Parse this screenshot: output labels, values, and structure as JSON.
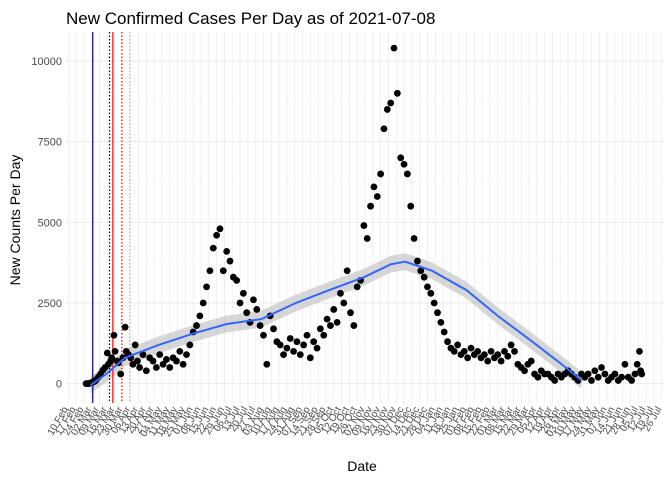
{
  "chart_data": {
    "type": "scatter",
    "title": "New Confirmed Cases Per Day as of 2021-07-08",
    "xlabel": "Date",
    "ylabel": "New Counts Per Day",
    "ylim": [
      -600,
      10900
    ],
    "y_ticks": [
      0,
      2500,
      5000,
      7500,
      10000
    ],
    "y_tick_labels": [
      "0",
      "2500",
      "5000",
      "7500",
      "10000"
    ],
    "xlim": [
      "2020-02-08",
      "2021-07-28"
    ],
    "x_tick_labels": [
      "10 Feb",
      "17 Feb",
      "24 Feb",
      "02 Mar",
      "09 Mar",
      "16 Mar",
      "23 Mar",
      "30 Mar",
      "06 Apr",
      "13 Apr",
      "20 Apr",
      "27 Apr",
      "04 May",
      "11 May",
      "18 May",
      "25 May",
      "01 Jun",
      "08 Jun",
      "15 Jun",
      "22 Jun",
      "29 Jun",
      "06 Jul",
      "13 Jul",
      "20 Jul",
      "27 Jul",
      "03 Aug",
      "10 Aug",
      "17 Aug",
      "24 Aug",
      "31 Aug",
      "07 Sep",
      "14 Sep",
      "21 Sep",
      "28 Sep",
      "05 Oct",
      "12 Oct",
      "19 Oct",
      "26 Oct",
      "02 Nov",
      "09 Nov",
      "16 Nov",
      "23 Nov",
      "30 Nov",
      "07 Dec",
      "14 Dec",
      "21 Dec",
      "28 Dec",
      "04 Jan",
      "11 Jan",
      "18 Jan",
      "25 Jan",
      "01 Feb",
      "08 Feb",
      "15 Feb",
      "22 Feb",
      "01 Mar",
      "08 Mar",
      "15 Mar",
      "22 Mar",
      "29 Mar",
      "05 Apr",
      "12 Apr",
      "19 Apr",
      "26 Apr",
      "03 May",
      "10 May",
      "17 May",
      "24 May",
      "31 May",
      "07 Jun",
      "14 Jun",
      "21 Jun",
      "28 Jun",
      "05 Jul",
      "12 Jul",
      "19 Jul",
      "26 Jul"
    ],
    "grid": true,
    "point_color": "#000000",
    "smooth_color": "#3366ff",
    "ribbon_color": "#bdbdbd",
    "vlines": [
      {
        "date": "2020-03-03",
        "color": "#00008b",
        "style": "solid"
      },
      {
        "date": "2020-03-21",
        "color": "#ff0000",
        "style": "solid"
      },
      {
        "date": "2020-03-18",
        "color": "#000000",
        "style": "dotted"
      },
      {
        "date": "2020-03-29",
        "color": "#ff0000",
        "style": "dotted"
      },
      {
        "date": "2020-04-05",
        "color": "#ff9999",
        "style": "dotted"
      }
    ],
    "series": [
      {
        "values": [
          [
            "2020-02-26",
            0
          ],
          [
            "2020-02-27",
            0
          ],
          [
            "2020-02-28",
            0
          ],
          [
            "2020-02-29",
            10
          ],
          [
            "2020-03-01",
            20
          ],
          [
            "2020-03-02",
            30
          ],
          [
            "2020-03-03",
            50
          ],
          [
            "2020-03-04",
            60
          ],
          [
            "2020-03-05",
            80
          ],
          [
            "2020-03-06",
            120
          ],
          [
            "2020-03-08",
            200
          ],
          [
            "2020-03-10",
            300
          ],
          [
            "2020-03-12",
            420
          ],
          [
            "2020-03-14",
            500
          ],
          [
            "2020-03-16",
            950
          ],
          [
            "2020-03-17",
            600
          ],
          [
            "2020-03-19",
            700
          ],
          [
            "2020-03-20",
            800
          ],
          [
            "2020-03-22",
            1500
          ],
          [
            "2020-03-23",
            1000
          ],
          [
            "2020-03-25",
            700
          ],
          [
            "2020-03-26",
            650
          ],
          [
            "2020-03-28",
            300
          ],
          [
            "2020-03-30",
            800
          ],
          [
            "2020-04-01",
            1750
          ],
          [
            "2020-04-02",
            1000
          ],
          [
            "2020-04-04",
            900
          ],
          [
            "2020-04-06",
            800
          ],
          [
            "2020-04-08",
            600
          ],
          [
            "2020-04-10",
            1200
          ],
          [
            "2020-04-12",
            700
          ],
          [
            "2020-04-14",
            500
          ],
          [
            "2020-04-17",
            900
          ],
          [
            "2020-04-20",
            400
          ],
          [
            "2020-04-23",
            800
          ],
          [
            "2020-04-26",
            700
          ],
          [
            "2020-04-29",
            500
          ],
          [
            "2020-05-02",
            900
          ],
          [
            "2020-05-05",
            600
          ],
          [
            "2020-05-08",
            750
          ],
          [
            "2020-05-11",
            500
          ],
          [
            "2020-05-14",
            800
          ],
          [
            "2020-05-17",
            700
          ],
          [
            "2020-05-20",
            1000
          ],
          [
            "2020-05-23",
            600
          ],
          [
            "2020-05-26",
            900
          ],
          [
            "2020-05-29",
            1200
          ],
          [
            "2020-06-01",
            1600
          ],
          [
            "2020-06-04",
            1800
          ],
          [
            "2020-06-07",
            2100
          ],
          [
            "2020-06-10",
            2500
          ],
          [
            "2020-06-13",
            3000
          ],
          [
            "2020-06-16",
            3500
          ],
          [
            "2020-06-19",
            4200
          ],
          [
            "2020-06-22",
            4600
          ],
          [
            "2020-06-25",
            4800
          ],
          [
            "2020-06-28",
            3500
          ],
          [
            "2020-07-01",
            4100
          ],
          [
            "2020-07-04",
            3800
          ],
          [
            "2020-07-07",
            3300
          ],
          [
            "2020-07-10",
            3200
          ],
          [
            "2020-07-13",
            2500
          ],
          [
            "2020-07-16",
            2800
          ],
          [
            "2020-07-19",
            2200
          ],
          [
            "2020-07-22",
            1900
          ],
          [
            "2020-07-25",
            2600
          ],
          [
            "2020-07-28",
            2300
          ],
          [
            "2020-07-31",
            1800
          ],
          [
            "2020-08-03",
            1500
          ],
          [
            "2020-08-06",
            600
          ],
          [
            "2020-08-09",
            2100
          ],
          [
            "2020-08-12",
            1700
          ],
          [
            "2020-08-15",
            1300
          ],
          [
            "2020-08-18",
            1200
          ],
          [
            "2020-08-21",
            900
          ],
          [
            "2020-08-24",
            1100
          ],
          [
            "2020-08-27",
            1400
          ],
          [
            "2020-08-30",
            1000
          ],
          [
            "2020-09-02",
            1300
          ],
          [
            "2020-09-05",
            900
          ],
          [
            "2020-09-08",
            1200
          ],
          [
            "2020-09-11",
            1500
          ],
          [
            "2020-09-14",
            800
          ],
          [
            "2020-09-17",
            1300
          ],
          [
            "2020-09-20",
            1100
          ],
          [
            "2020-09-23",
            1700
          ],
          [
            "2020-09-26",
            1500
          ],
          [
            "2020-09-29",
            2000
          ],
          [
            "2020-10-02",
            1800
          ],
          [
            "2020-10-05",
            2300
          ],
          [
            "2020-10-08",
            1900
          ],
          [
            "2020-10-11",
            2800
          ],
          [
            "2020-10-14",
            2500
          ],
          [
            "2020-10-17",
            3500
          ],
          [
            "2020-10-20",
            2200
          ],
          [
            "2020-10-23",
            1800
          ],
          [
            "2020-10-26",
            3000
          ],
          [
            "2020-10-29",
            3200
          ],
          [
            "2020-11-01",
            4900
          ],
          [
            "2020-11-04",
            4500
          ],
          [
            "2020-11-07",
            5500
          ],
          [
            "2020-11-10",
            6100
          ],
          [
            "2020-11-13",
            5800
          ],
          [
            "2020-11-16",
            6500
          ],
          [
            "2020-11-19",
            7900
          ],
          [
            "2020-11-22",
            8500
          ],
          [
            "2020-11-25",
            8700
          ],
          [
            "2020-11-28",
            10400
          ],
          [
            "2020-12-01",
            9000
          ],
          [
            "2020-12-04",
            7000
          ],
          [
            "2020-12-07",
            6800
          ],
          [
            "2020-12-10",
            6500
          ],
          [
            "2020-12-13",
            5500
          ],
          [
            "2020-12-16",
            4500
          ],
          [
            "2020-12-19",
            3800
          ],
          [
            "2020-12-22",
            3500
          ],
          [
            "2020-12-25",
            3300
          ],
          [
            "2020-12-28",
            3000
          ],
          [
            "2020-12-31",
            2800
          ],
          [
            "2021-01-03",
            2500
          ],
          [
            "2021-01-06",
            2200
          ],
          [
            "2021-01-09",
            1900
          ],
          [
            "2021-01-12",
            1600
          ],
          [
            "2021-01-15",
            1300
          ],
          [
            "2021-01-18",
            1100
          ],
          [
            "2021-01-21",
            1000
          ],
          [
            "2021-01-24",
            1200
          ],
          [
            "2021-01-27",
            900
          ],
          [
            "2021-01-30",
            1000
          ],
          [
            "2021-02-02",
            800
          ],
          [
            "2021-02-05",
            1100
          ],
          [
            "2021-02-08",
            900
          ],
          [
            "2021-02-11",
            1000
          ],
          [
            "2021-02-14",
            800
          ],
          [
            "2021-02-17",
            900
          ],
          [
            "2021-02-20",
            700
          ],
          [
            "2021-02-23",
            1000
          ],
          [
            "2021-02-26",
            800
          ],
          [
            "2021-03-01",
            900
          ],
          [
            "2021-03-04",
            700
          ],
          [
            "2021-03-07",
            1000
          ],
          [
            "2021-03-10",
            850
          ],
          [
            "2021-03-13",
            1200
          ],
          [
            "2021-03-16",
            1000
          ],
          [
            "2021-03-19",
            600
          ],
          [
            "2021-03-22",
            500
          ],
          [
            "2021-03-25",
            400
          ],
          [
            "2021-03-28",
            600
          ],
          [
            "2021-03-31",
            700
          ],
          [
            "2021-04-03",
            300
          ],
          [
            "2021-04-06",
            200
          ],
          [
            "2021-04-09",
            400
          ],
          [
            "2021-04-12",
            300
          ],
          [
            "2021-04-15",
            300
          ],
          [
            "2021-04-18",
            200
          ],
          [
            "2021-04-21",
            100
          ],
          [
            "2021-04-24",
            300
          ],
          [
            "2021-04-27",
            200
          ],
          [
            "2021-04-30",
            300
          ],
          [
            "2021-05-03",
            400
          ],
          [
            "2021-05-06",
            300
          ],
          [
            "2021-05-09",
            200
          ],
          [
            "2021-05-12",
            100
          ],
          [
            "2021-05-15",
            300
          ],
          [
            "2021-05-18",
            200
          ],
          [
            "2021-05-21",
            300
          ],
          [
            "2021-05-24",
            100
          ],
          [
            "2021-05-27",
            400
          ],
          [
            "2021-05-30",
            200
          ],
          [
            "2021-06-02",
            500
          ],
          [
            "2021-06-05",
            300
          ],
          [
            "2021-06-08",
            100
          ],
          [
            "2021-06-11",
            200
          ],
          [
            "2021-06-14",
            300
          ],
          [
            "2021-06-17",
            100
          ],
          [
            "2021-06-20",
            200
          ],
          [
            "2021-06-23",
            600
          ],
          [
            "2021-06-26",
            200
          ],
          [
            "2021-06-29",
            100
          ],
          [
            "2021-07-02",
            300
          ],
          [
            "2021-07-04",
            600
          ],
          [
            "2021-07-06",
            1000
          ],
          [
            "2021-07-07",
            400
          ],
          [
            "2021-07-08",
            300
          ]
        ]
      }
    ],
    "smooth": [
      [
        "2020-03-01",
        -50
      ],
      [
        "2020-03-15",
        300
      ],
      [
        "2020-04-01",
        800
      ],
      [
        "2020-05-01",
        1200
      ],
      [
        "2020-06-01",
        1550
      ],
      [
        "2020-07-01",
        1850
      ],
      [
        "2020-08-01",
        2000
      ],
      [
        "2020-09-01",
        2500
      ],
      [
        "2020-10-01",
        2900
      ],
      [
        "2020-11-01",
        3300
      ],
      [
        "2020-11-25",
        3700
      ],
      [
        "2020-12-08",
        3780
      ],
      [
        "2021-01-01",
        3500
      ],
      [
        "2021-02-01",
        2900
      ],
      [
        "2021-03-01",
        2100
      ],
      [
        "2021-04-01",
        1300
      ],
      [
        "2021-05-01",
        500
      ],
      [
        "2021-05-15",
        100
      ]
    ]
  }
}
